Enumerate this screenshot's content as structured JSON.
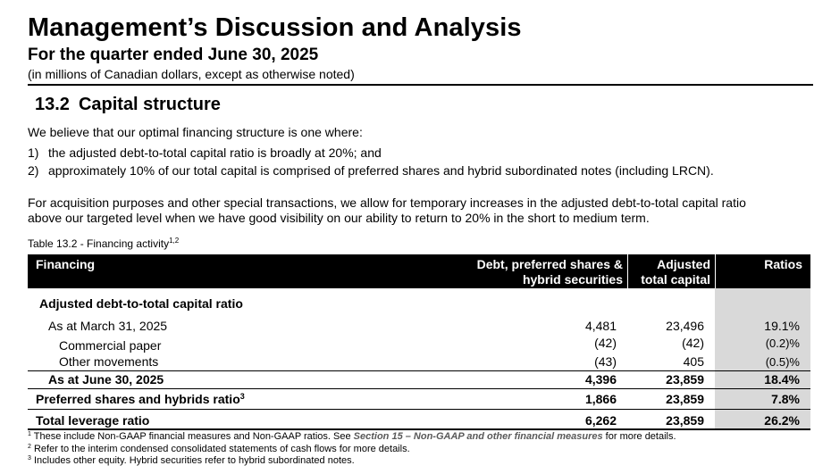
{
  "header": {
    "title": "Management’s Discussion and Analysis",
    "subtitle": "For the quarter ended June 30, 2025",
    "units": "(in millions of Canadian dollars, except as otherwise noted)"
  },
  "section": {
    "number": "13.2",
    "title": "Capital structure",
    "intro": "We believe that our optimal financing structure is one where:",
    "list": [
      {
        "marker": "1)",
        "text": "the adjusted debt-to-total capital ratio is broadly at 20%; and"
      },
      {
        "marker": "2)",
        "text": "approximately 10% of our total capital is comprised of preferred shares and hybrid subordinated notes (including LRCN)."
      }
    ],
    "para2_line1": "For acquisition purposes and other special transactions, we allow for temporary increases in the adjusted debt-to-total capital ratio",
    "para2_line2": "above our targeted level when we have good visibility on our ability to return to 20% in the short to medium term."
  },
  "table": {
    "caption": "Table 13.2 - Financing activity",
    "caption_sup": "1,2",
    "headers": {
      "financing": "Financing",
      "debt_line1": "Debt, preferred shares &",
      "debt_line2": "hybrid securities",
      "adj_line1": "Adjusted",
      "adj_line2": "total capital",
      "ratios": "Ratios"
    },
    "rows": [
      {
        "label": "Adjusted debt-to-total capital ratio",
        "debt": "",
        "adj": "",
        "ratio": ""
      },
      {
        "label": "As at March 31, 2025",
        "debt": "4,481",
        "adj": "23,496",
        "ratio": "19.1%"
      },
      {
        "label": "Commercial paper",
        "debt": "(42)",
        "adj": "(42)",
        "ratio": "(0.2)%"
      },
      {
        "label": "Other movements",
        "debt": "(43)",
        "adj": "405",
        "ratio": "(0.5)%"
      },
      {
        "label": "As at June 30, 2025",
        "debt": "4,396",
        "adj": "23,859",
        "ratio": "18.4%"
      },
      {
        "label": "Preferred shares and hybrids ratio",
        "label_sup": "3",
        "debt": "1,866",
        "adj": "23,859",
        "ratio": "7.8%"
      },
      {
        "label": "Total leverage ratio",
        "debt": "6,262",
        "adj": "23,859",
        "ratio": "26.2%"
      }
    ]
  },
  "footnotes": [
    {
      "sup": "1",
      "text_before": "These include Non-GAAP financial measures and Non-GAAP ratios. See ",
      "ref": "Section 15 – Non-GAAP and other financial measures",
      "text_after": " for more details."
    },
    {
      "sup": "2",
      "text": "Refer to the interim condensed consolidated statements of cash flows for more details."
    },
    {
      "sup": "3",
      "text": "Includes other equity. Hybrid securities refer to hybrid subordinated notes."
    }
  ],
  "colors": {
    "table_header_bg": "#000000",
    "ratio_column_shade": "#d9d9d9",
    "reference_text": "#595959"
  }
}
